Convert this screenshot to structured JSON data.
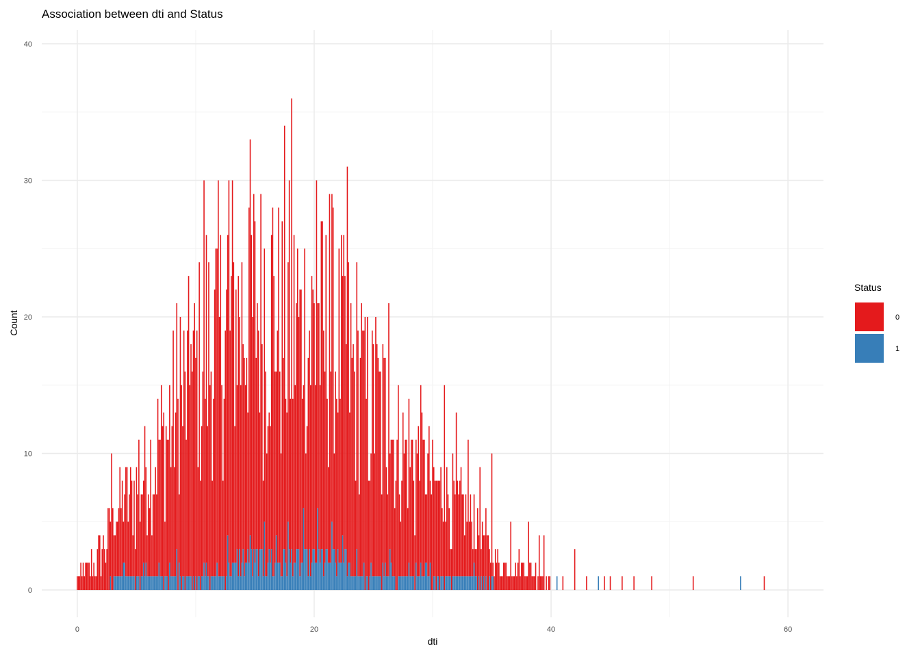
{
  "chart_data": {
    "type": "bar",
    "title": "Association between dti and Status",
    "xlabel": "dti",
    "ylabel": "Count",
    "xlim": [
      -3,
      63
    ],
    "ylim": [
      -2,
      41
    ],
    "x_ticks": [
      0,
      20,
      40,
      60
    ],
    "y_ticks": [
      0,
      10,
      20,
      30,
      40
    ],
    "grid": true,
    "stacked": true,
    "bin_width": 0.1,
    "legend": {
      "title": "Status",
      "position": "right"
    },
    "colors": {
      "0": "#E41A1C",
      "1": "#377EB8",
      "grid_major": "#EBEBEB",
      "grid_minor": "#F2F2F2"
    },
    "series": [
      {
        "name": "0",
        "color": "#E41A1C",
        "envelope": [
          [
            0,
            1
          ],
          [
            1,
            2
          ],
          [
            2,
            3
          ],
          [
            3,
            5
          ],
          [
            4,
            6
          ],
          [
            5,
            7
          ],
          [
            6,
            9
          ],
          [
            7,
            11
          ],
          [
            8,
            13
          ],
          [
            9,
            15
          ],
          [
            10,
            17
          ],
          [
            11,
            19
          ],
          [
            12,
            20
          ],
          [
            13,
            21
          ],
          [
            14,
            21
          ],
          [
            15,
            21
          ],
          [
            16,
            20
          ],
          [
            17,
            20
          ],
          [
            18,
            20
          ],
          [
            19,
            19
          ],
          [
            20,
            19
          ],
          [
            21,
            18
          ],
          [
            22,
            18
          ],
          [
            23,
            17
          ],
          [
            24,
            15
          ],
          [
            25,
            14
          ],
          [
            26,
            13
          ],
          [
            27,
            11
          ],
          [
            28,
            10
          ],
          [
            29,
            9
          ],
          [
            30,
            8
          ],
          [
            31,
            7
          ],
          [
            32,
            6
          ],
          [
            33,
            5
          ],
          [
            34,
            4
          ],
          [
            35,
            3
          ],
          [
            36,
            2
          ],
          [
            37,
            2
          ],
          [
            38,
            2
          ],
          [
            39,
            1
          ],
          [
            40,
            1
          ]
        ],
        "peaks": [
          [
            2.9,
            10
          ],
          [
            5.2,
            10
          ],
          [
            8.7,
            19
          ],
          [
            9.6,
            17
          ],
          [
            10.7,
            28
          ],
          [
            11.9,
            29
          ],
          [
            12.8,
            28
          ],
          [
            14.5,
            26
          ],
          [
            16.5,
            27
          ],
          [
            17.5,
            31
          ],
          [
            18.1,
            33
          ],
          [
            19.2,
            22
          ],
          [
            20.2,
            28
          ],
          [
            21.3,
            27
          ],
          [
            22.8,
            30
          ],
          [
            24.0,
            20
          ],
          [
            25.2,
            19
          ],
          [
            26.3,
            20
          ],
          [
            29.0,
            13
          ],
          [
            31.0,
            15
          ],
          [
            32.0,
            12
          ],
          [
            33.0,
            10
          ],
          [
            34.0,
            9
          ],
          [
            35.0,
            9
          ],
          [
            36.6,
            5
          ],
          [
            38.1,
            5
          ],
          [
            39.0,
            4
          ],
          [
            39.4,
            4
          ]
        ],
        "outliers": [
          [
            41.0,
            1
          ],
          [
            42.0,
            3
          ],
          [
            43.0,
            1
          ],
          [
            44.5,
            1
          ],
          [
            45.0,
            1
          ],
          [
            46.0,
            1
          ],
          [
            47.0,
            1
          ],
          [
            48.5,
            1
          ],
          [
            52.0,
            1
          ],
          [
            58.0,
            1
          ]
        ]
      },
      {
        "name": "1",
        "color": "#377EB8",
        "envelope": [
          [
            0,
            0
          ],
          [
            2,
            0
          ],
          [
            4,
            1
          ],
          [
            6,
            1
          ],
          [
            8,
            1
          ],
          [
            10,
            1
          ],
          [
            12,
            1
          ],
          [
            14,
            2
          ],
          [
            16,
            2
          ],
          [
            18,
            2
          ],
          [
            20,
            2
          ],
          [
            22,
            2
          ],
          [
            24,
            1
          ],
          [
            26,
            1
          ],
          [
            28,
            1
          ],
          [
            30,
            1
          ],
          [
            32,
            1
          ],
          [
            34,
            1
          ],
          [
            36,
            0
          ],
          [
            38,
            0
          ],
          [
            40,
            0
          ]
        ],
        "peaks": [
          [
            8.4,
            3
          ],
          [
            12.7,
            4
          ],
          [
            14.6,
            4
          ],
          [
            15.8,
            5
          ],
          [
            16.8,
            4
          ],
          [
            17.8,
            5
          ],
          [
            19.1,
            6
          ],
          [
            20.3,
            6
          ],
          [
            21.5,
            5
          ],
          [
            22.4,
            4
          ],
          [
            23.6,
            3
          ],
          [
            26.4,
            3
          ],
          [
            29.4,
            2
          ]
        ],
        "outliers": [
          [
            40.5,
            1
          ],
          [
            44.0,
            1
          ],
          [
            56.0,
            1
          ]
        ]
      }
    ]
  }
}
